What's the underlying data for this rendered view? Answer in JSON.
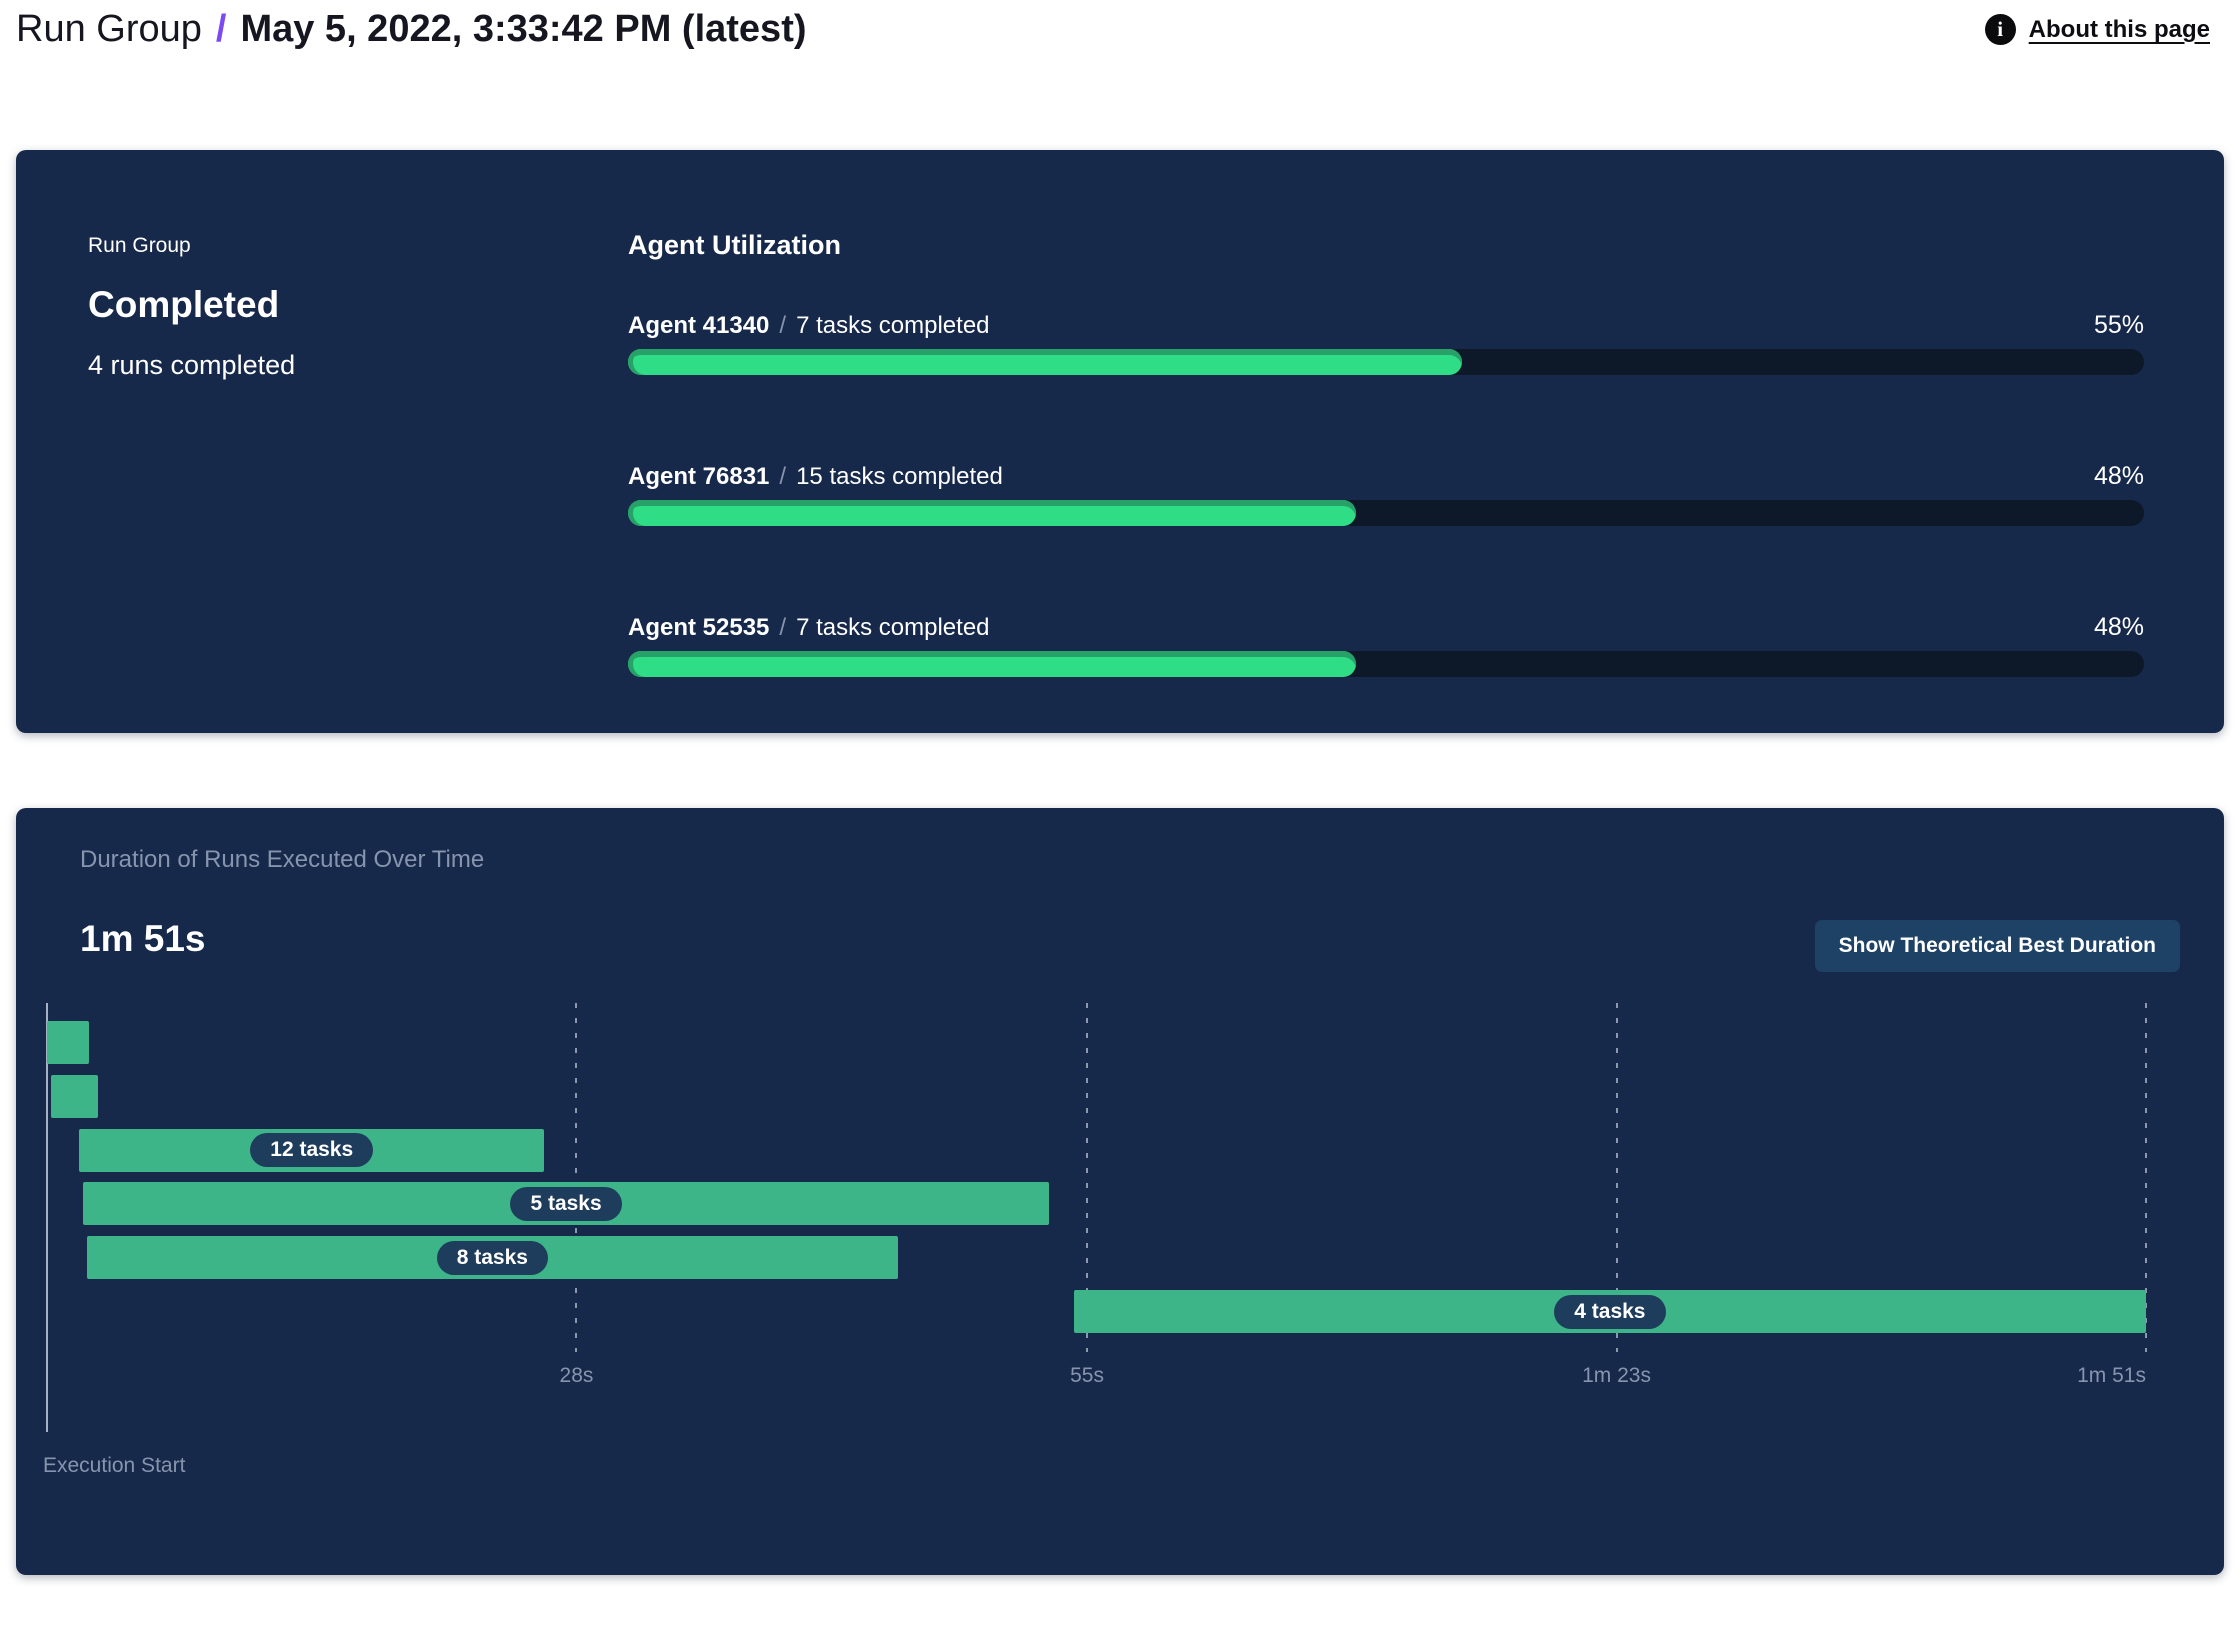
{
  "header": {
    "breadcrumb": "Run Group",
    "separator": "/",
    "title": "May 5, 2022, 3:33:42 PM (latest)",
    "about_link": "About this page",
    "info_icon_glyph": "i"
  },
  "colors": {
    "panel_bg": "#17294b",
    "progress_track": "#0d1829",
    "progress_green": "#2edd86",
    "progress_green_dark": "#28a169",
    "gantt_green": "#3eb489",
    "chip_bg": "#1e3c5b",
    "muted_text": "#8695ad",
    "axis_line": "#a7b1c2",
    "button_bg": "#1e4166",
    "accent_purple": "#7a4bf2"
  },
  "status_panel": {
    "label": "Run Group",
    "status": "Completed",
    "subtext": "4 runs completed",
    "utilization": {
      "title": "Agent Utilization",
      "separator": "/",
      "agents": [
        {
          "name": "Agent 41340",
          "tasks": "7 tasks completed",
          "percent": 55,
          "percent_label": "55%"
        },
        {
          "name": "Agent 76831",
          "tasks": "15 tasks completed",
          "percent": 48,
          "percent_label": "48%"
        },
        {
          "name": "Agent 52535",
          "tasks": "7 tasks completed",
          "percent": 48,
          "percent_label": "48%"
        }
      ]
    }
  },
  "duration_panel": {
    "title": "Duration of Runs Executed Over Time",
    "total_duration": "1m 51s",
    "button_label": "Show Theoretical Best Duration",
    "execution_start_label": "Execution Start"
  },
  "chart_data": {
    "type": "gantt",
    "title": "Duration of Runs Executed Over Time",
    "unit": "seconds",
    "axis_min": 0,
    "axis_max": 111,
    "xlabel": "Execution Start",
    "grid": "dashed-vertical",
    "ticks": [
      {
        "t": 28,
        "label": "28s"
      },
      {
        "t": 55,
        "label": "55s"
      },
      {
        "t": 83,
        "label": "1m 23s"
      },
      {
        "t": 111,
        "label": "1m 51s"
      }
    ],
    "runs": [
      {
        "start": 0,
        "end": 2.2,
        "label": ""
      },
      {
        "start": 0.2,
        "end": 2.7,
        "label": ""
      },
      {
        "start": 1.7,
        "end": 26.3,
        "label": "12 tasks"
      },
      {
        "start": 1.9,
        "end": 53,
        "label": "5 tasks"
      },
      {
        "start": 2.1,
        "end": 45,
        "label": "8 tasks"
      },
      {
        "start": 54.3,
        "end": 111,
        "label": "4 tasks"
      }
    ]
  }
}
